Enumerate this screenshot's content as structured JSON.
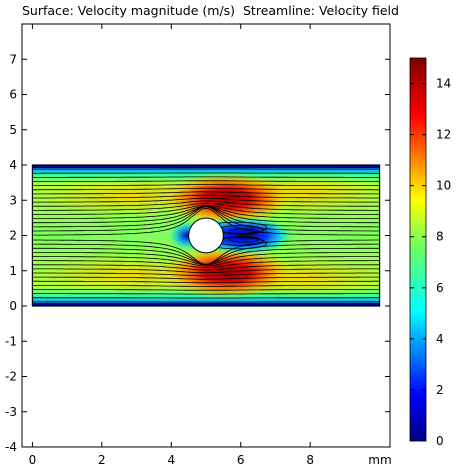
{
  "title": "Surface: Velocity magnitude (m/s)  Streamline: Velocity field",
  "chart_data": {
    "type": "heatmap",
    "title": "Surface: Velocity magnitude (m/s)  Streamline: Velocity field",
    "x_unit": "mm",
    "xlim": [
      -0.3,
      10.3
    ],
    "ylim": [
      -4,
      8
    ],
    "x_ticks": [
      0,
      2,
      4,
      6,
      8
    ],
    "y_ticks": [
      -4,
      -3,
      -2,
      -1,
      0,
      1,
      2,
      3,
      4,
      5,
      6,
      7
    ],
    "domain_rect": {
      "x": [
        0,
        10
      ],
      "y": [
        0,
        4
      ]
    },
    "obstacle": {
      "shape": "circle",
      "center": [
        5,
        2
      ],
      "radius": 0.5
    },
    "surface": "Velocity magnitude",
    "surface_unit": "m/s",
    "streamline": "Velocity field",
    "colorbar": {
      "min": 0,
      "max": 15,
      "ticks": [
        0,
        2,
        4,
        6,
        8,
        10,
        12,
        14
      ],
      "colormap": "rainbow"
    },
    "grid": false,
    "colorbar_placement": "right"
  }
}
